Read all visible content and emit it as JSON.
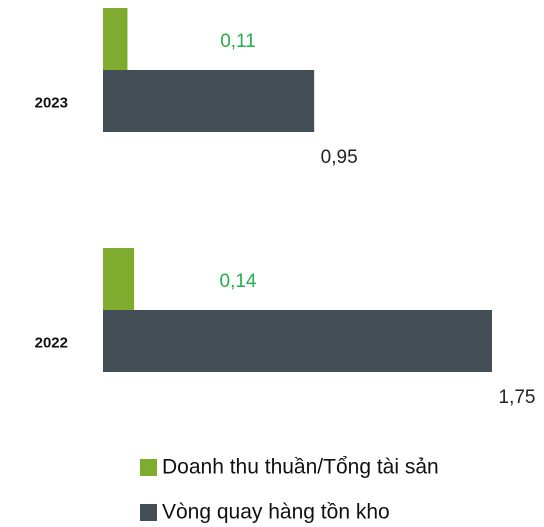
{
  "chart_data": {
    "type": "bar",
    "orientation": "horizontal",
    "categories": [
      "2023",
      "2022"
    ],
    "series": [
      {
        "name": "Doanh thu thuần/Tổng tài sản",
        "color": "#7fab2f",
        "values": [
          0.11,
          0.14
        ],
        "value_labels": [
          "0,11",
          "0,14"
        ],
        "label_color": "#22b04b"
      },
      {
        "name": "Vòng quay hàng tồn kho",
        "color": "#444e55",
        "values": [
          0.95,
          1.75
        ],
        "value_labels": [
          "0,95",
          "1,75"
        ],
        "label_color": "#222222"
      }
    ]
  }
}
